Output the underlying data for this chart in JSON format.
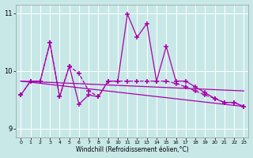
{
  "bg_color": "#c8e8e8",
  "line_color": "#aa00aa",
  "ylim": [
    8.85,
    11.15
  ],
  "xlim": [
    -0.5,
    23.5
  ],
  "yticks": [
    9,
    10,
    11
  ],
  "xticks": [
    0,
    1,
    2,
    3,
    4,
    5,
    6,
    7,
    8,
    9,
    10,
    11,
    12,
    13,
    14,
    15,
    16,
    17,
    18,
    19,
    20,
    21,
    22,
    23
  ],
  "xlabel": "Windchill (Refroidissement éolien,°C)",
  "jagged_x": [
    0,
    1,
    2,
    3,
    4,
    5,
    6,
    7,
    8,
    9,
    10,
    11,
    12,
    13,
    14,
    15,
    16,
    17,
    18,
    19,
    20,
    21,
    22,
    23
  ],
  "jagged_y": [
    9.58,
    9.82,
    9.82,
    10.48,
    9.55,
    10.08,
    9.42,
    9.58,
    9.55,
    9.82,
    9.82,
    10.98,
    10.58,
    10.82,
    9.82,
    10.42,
    9.82,
    9.82,
    9.72,
    9.62,
    9.52,
    9.45,
    9.45,
    9.38
  ],
  "mod_x": [
    0,
    1,
    2,
    3,
    4,
    5,
    6,
    7,
    8,
    9,
    10,
    11,
    12,
    13,
    14,
    15,
    16,
    17,
    18,
    19,
    20,
    21,
    22,
    23
  ],
  "mod_y": [
    9.58,
    9.82,
    9.82,
    10.48,
    9.55,
    10.08,
    9.95,
    9.65,
    9.55,
    9.82,
    9.82,
    9.82,
    9.82,
    9.82,
    9.82,
    9.82,
    9.78,
    9.72,
    9.65,
    9.58,
    9.52,
    9.45,
    9.45,
    9.38
  ],
  "trend_x": [
    0,
    23
  ],
  "trend_y": [
    9.82,
    9.65
  ],
  "trend2_x": [
    0,
    23
  ],
  "trend2_y": [
    9.82,
    9.38
  ]
}
